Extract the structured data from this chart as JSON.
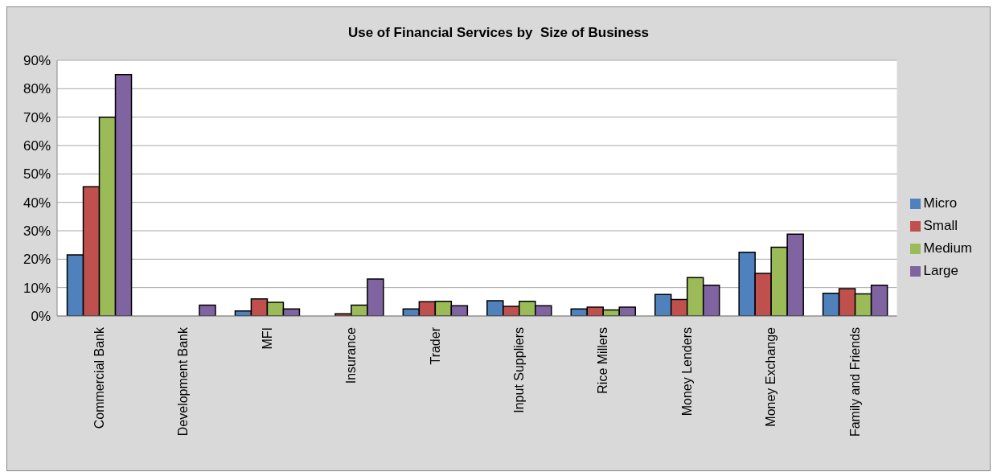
{
  "chart_data": {
    "type": "bar",
    "title": "Use of Financial Services by  Size of Business",
    "categories": [
      "Commercial Bank",
      "Development Bank",
      "MFI",
      "Insurance",
      "Trader",
      "Input Suppliers",
      "Rice Millers",
      "Money Lenders",
      "Money Exchange",
      "Family and Friends"
    ],
    "series": [
      {
        "name": "Micro",
        "color": "#4f81bd",
        "values": [
          21.5,
          0,
          1.8,
          0,
          2.5,
          5.4,
          2.5,
          7.6,
          22.4,
          8
        ]
      },
      {
        "name": "Small",
        "color": "#c0504d",
        "values": [
          45.5,
          0,
          6,
          0.8,
          5,
          3.4,
          3.1,
          5.8,
          15,
          9.6
        ]
      },
      {
        "name": "Medium",
        "color": "#9bbb59",
        "values": [
          70,
          0,
          4.8,
          3.8,
          5.2,
          5.2,
          2.1,
          13.5,
          24.2,
          7.8
        ]
      },
      {
        "name": "Large",
        "color": "#8064a2",
        "values": [
          85,
          3.8,
          2.5,
          13,
          3.6,
          3.6,
          3.1,
          10.8,
          28.8,
          10.8
        ]
      }
    ],
    "ylim": [
      0,
      90
    ],
    "yticks": [
      {
        "value": 0,
        "label": "0%"
      },
      {
        "value": 10,
        "label": "10%"
      },
      {
        "value": 20,
        "label": "20%"
      },
      {
        "value": 30,
        "label": "30%"
      },
      {
        "value": 40,
        "label": "40%"
      },
      {
        "value": 50,
        "label": "50%"
      },
      {
        "value": 60,
        "label": "60%"
      },
      {
        "value": 70,
        "label": "70%"
      },
      {
        "value": 80,
        "label": "80%"
      },
      {
        "value": 90,
        "label": "90%"
      }
    ],
    "grid": "y",
    "legend": "right"
  }
}
